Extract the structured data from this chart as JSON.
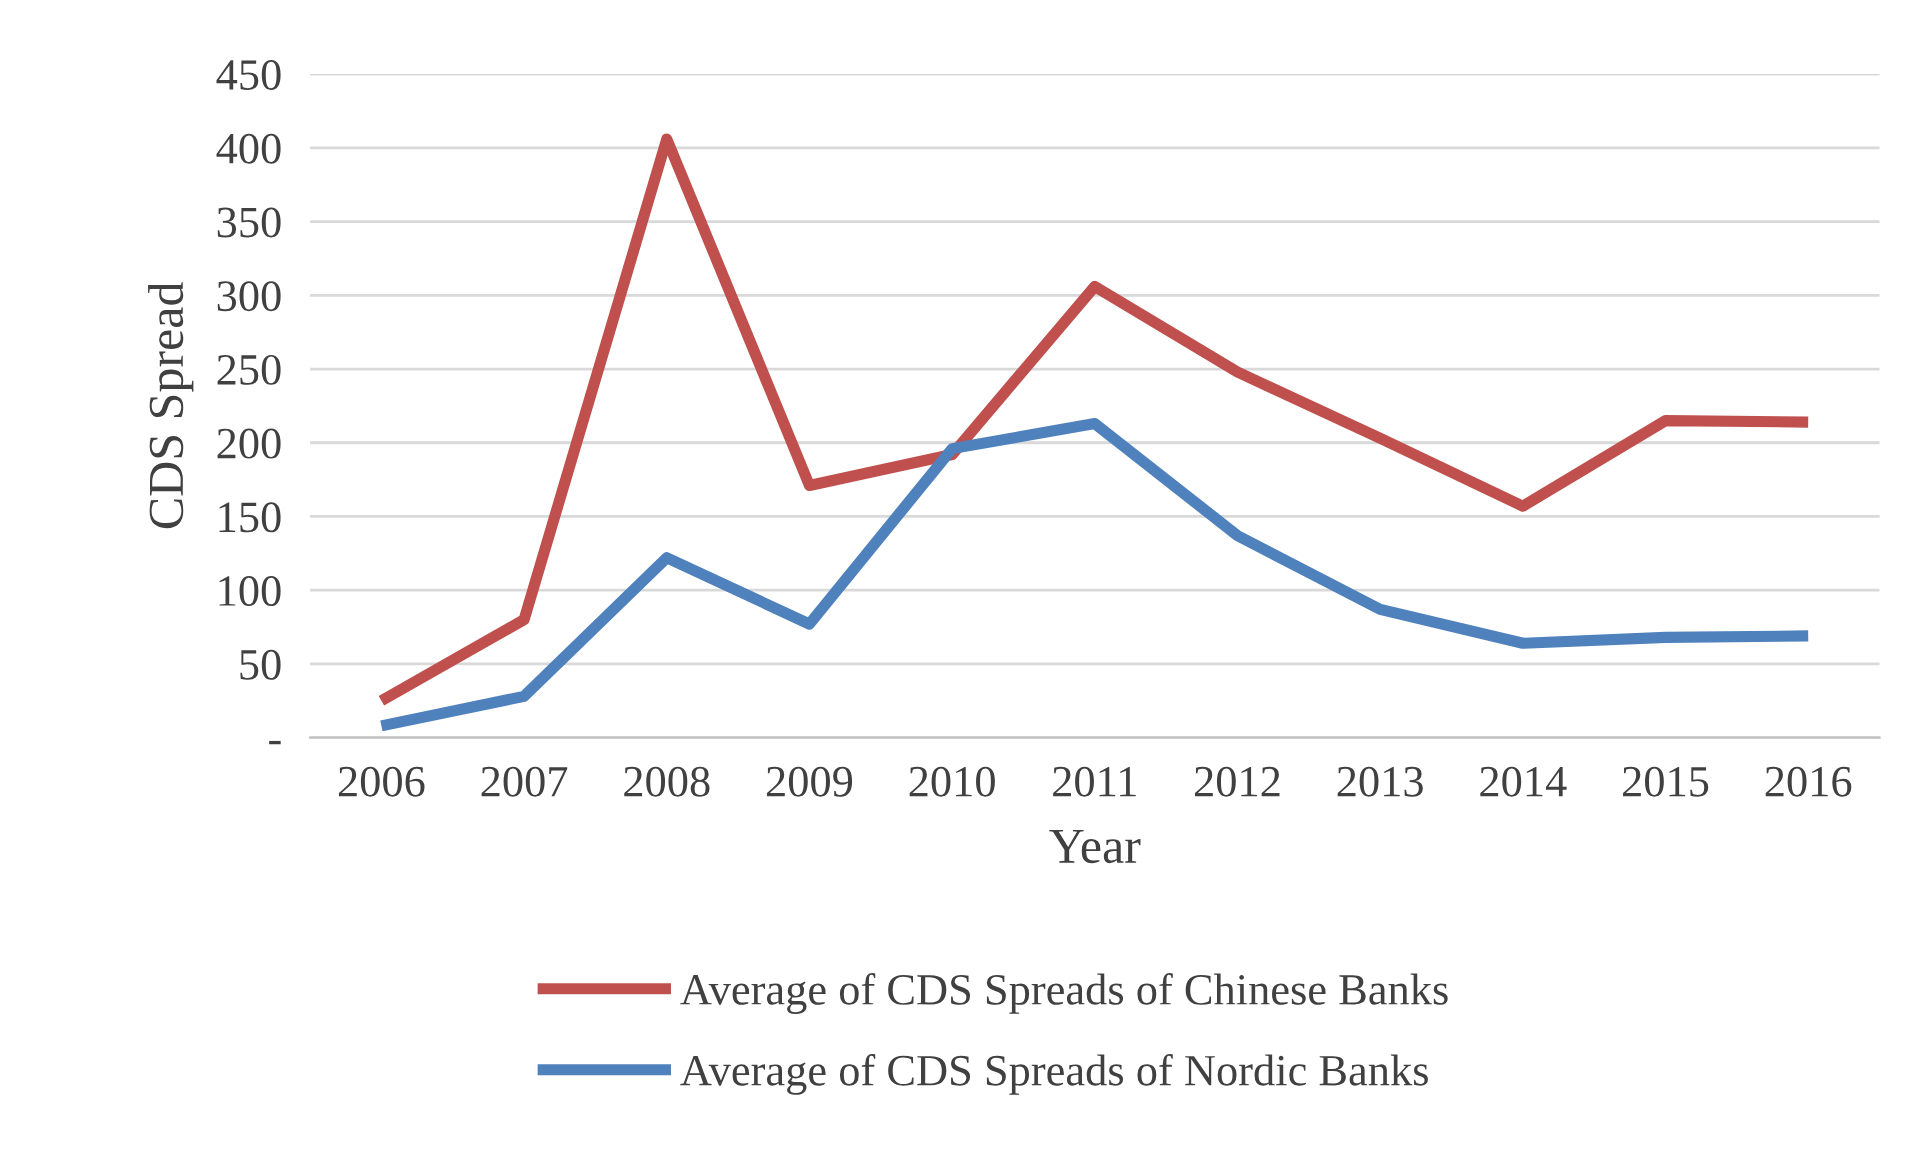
{
  "chart_data": {
    "type": "line",
    "xlabel": "Year",
    "ylabel": "CDS Spread",
    "categories": [
      "2006",
      "2007",
      "2008",
      "2009",
      "2010",
      "2011",
      "2012",
      "2013",
      "2014",
      "2015",
      "2016"
    ],
    "series": [
      {
        "name": "Average of CDS Spreads of Chinese Banks",
        "color": "#c0504d",
        "values": [
          25,
          80,
          406,
          171,
          192,
          306,
          248,
          203,
          157,
          215,
          214
        ]
      },
      {
        "name": "Average of CDS Spreads of Nordic Banks",
        "color": "#4f81bd",
        "values": [
          8,
          28,
          122,
          77,
          196,
          213,
          137,
          87,
          64,
          68,
          69
        ]
      }
    ],
    "ylim": [
      0,
      450
    ],
    "yticks": [
      {
        "value": 0,
        "label": "-"
      },
      50,
      100,
      150,
      200,
      250,
      300,
      350,
      400,
      450
    ],
    "grid": "y",
    "legend": "bottom",
    "marker": "none",
    "line_style": "solid"
  }
}
